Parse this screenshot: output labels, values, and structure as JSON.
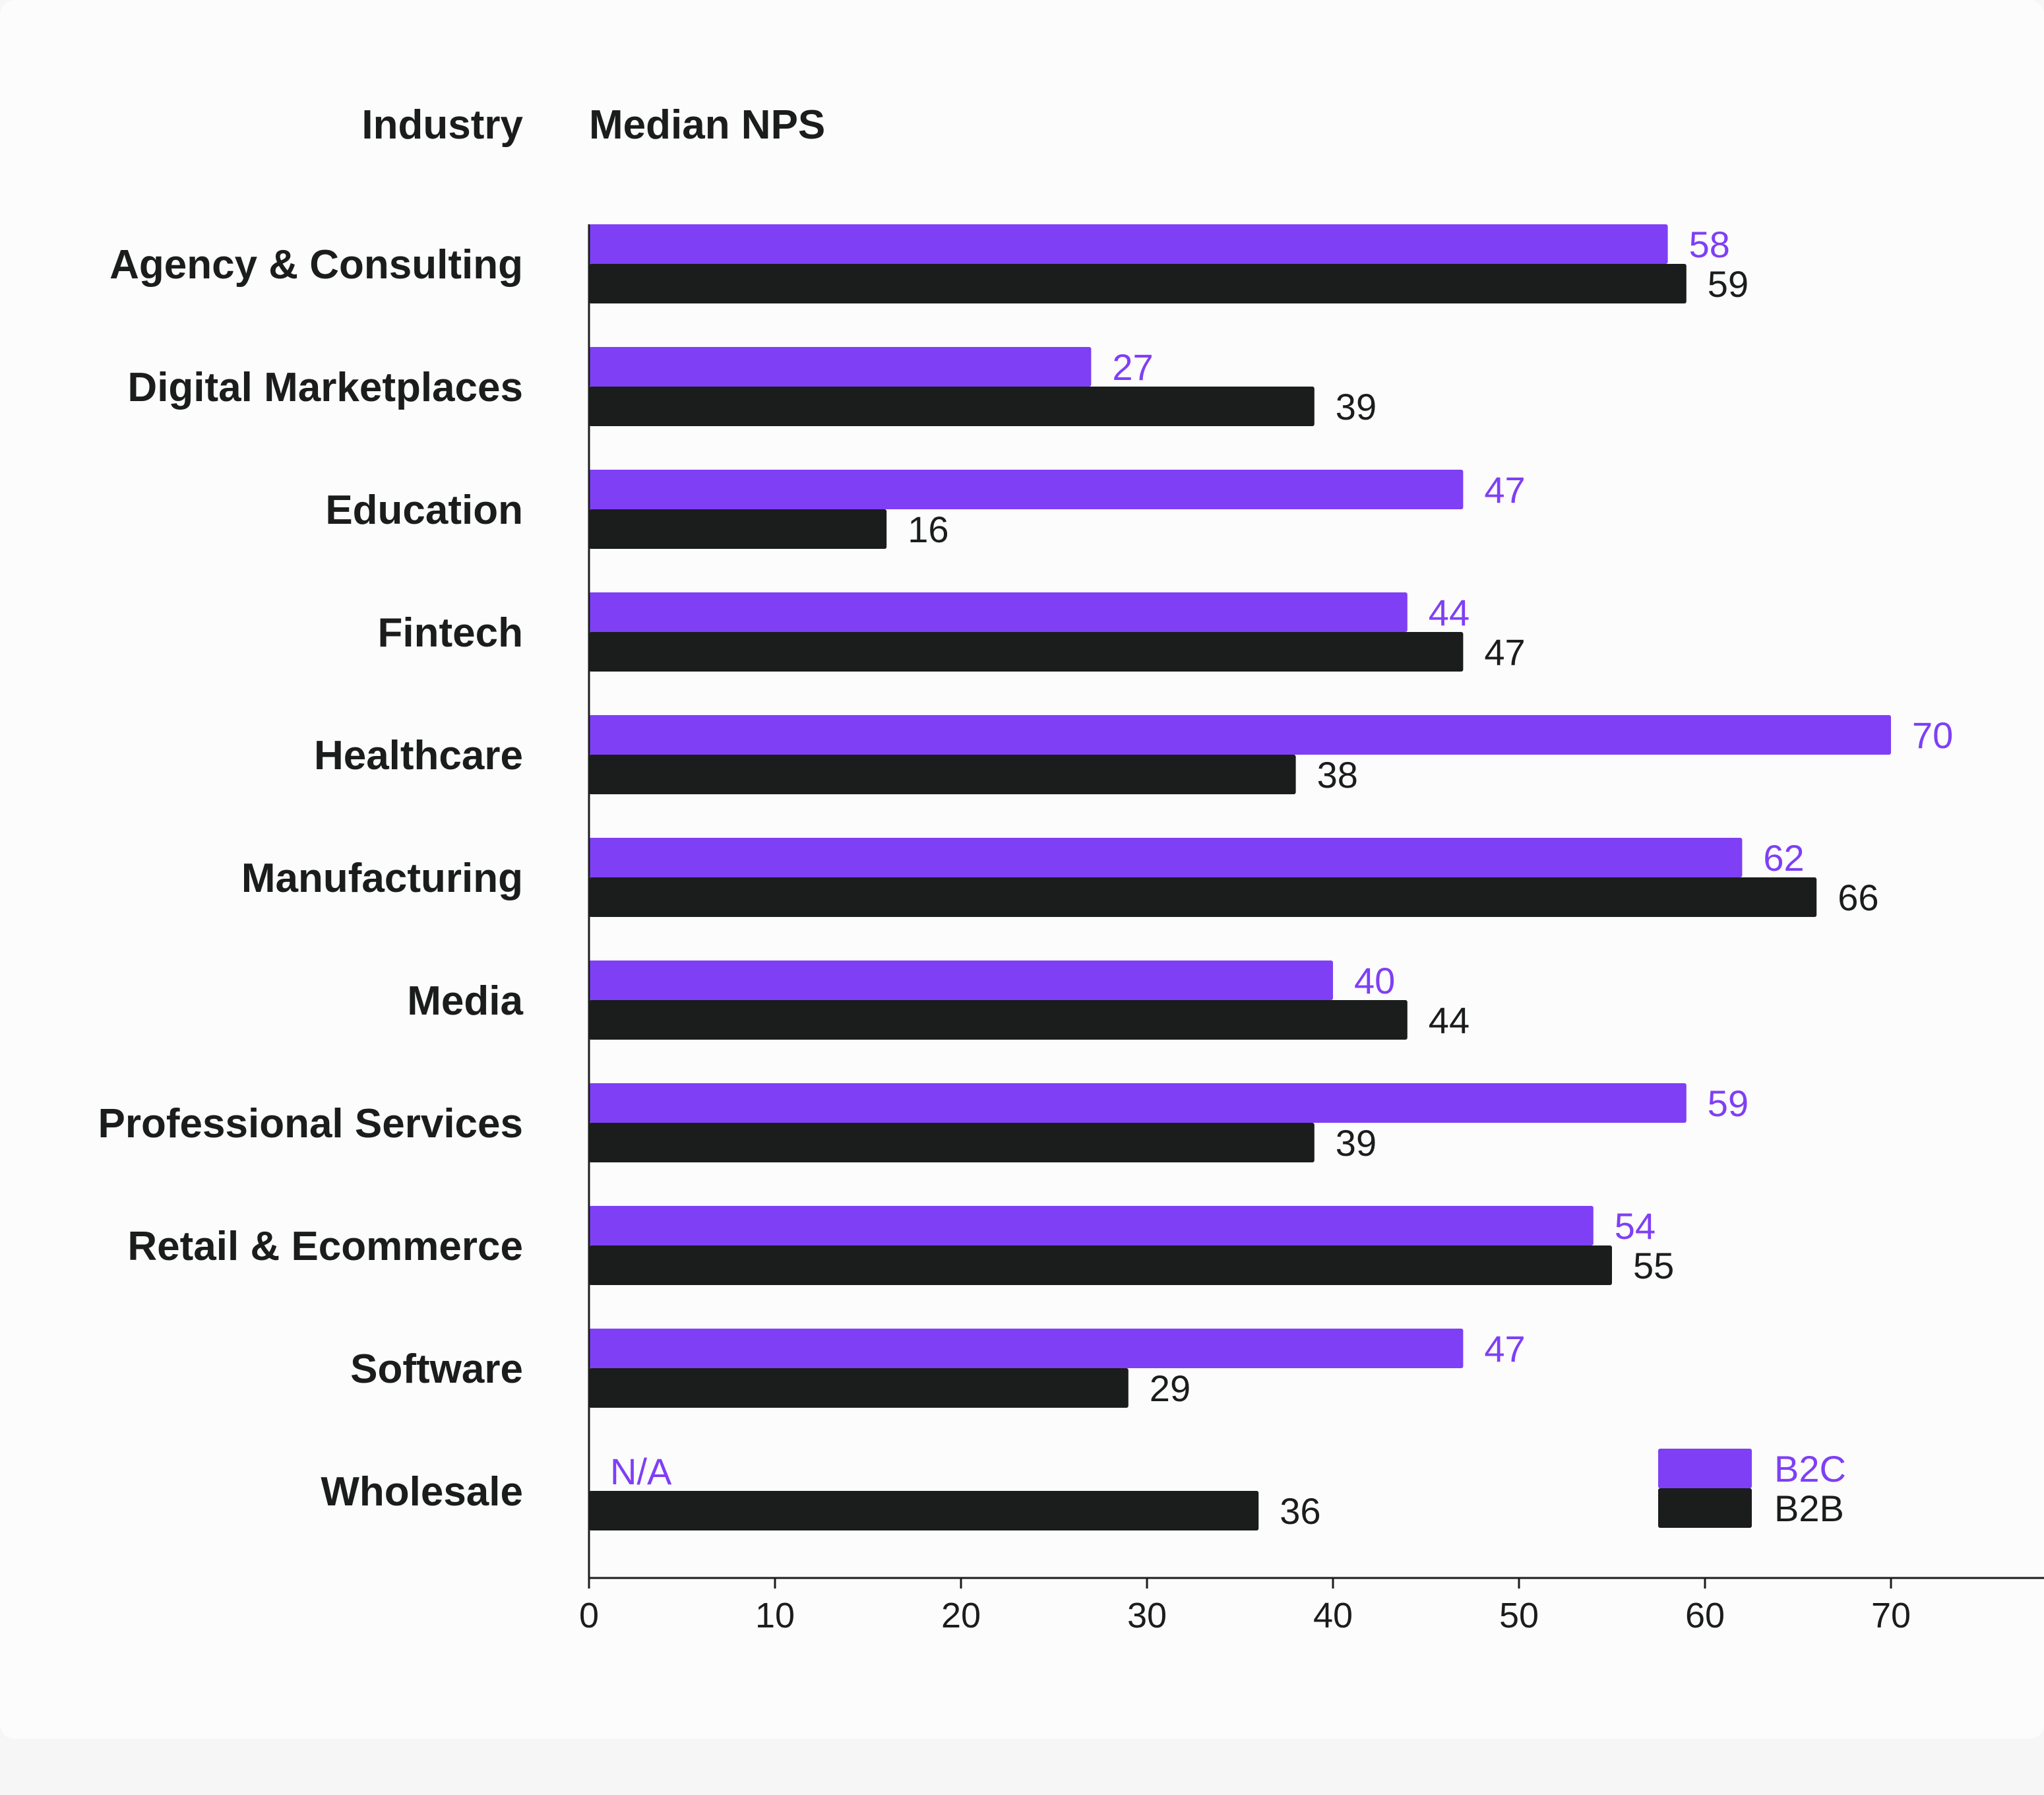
{
  "chart_data": {
    "type": "bar",
    "orientation": "horizontal",
    "category_header": "Industry",
    "value_header": "Median NPS",
    "categories": [
      "Agency & Consulting",
      "Digital Marketplaces",
      "Education",
      "Fintech",
      "Healthcare",
      "Manufacturing",
      "Media",
      "Professional Services",
      "Retail & Ecommerce",
      "Software",
      "Wholesale"
    ],
    "series": [
      {
        "name": "B2C",
        "color": "#7f3ff5",
        "values": [
          58,
          27,
          47,
          44,
          70,
          62,
          40,
          59,
          54,
          47,
          null
        ],
        "labels": [
          "58",
          "27",
          "47",
          "44",
          "70",
          "62",
          "40",
          "59",
          "54",
          "47",
          "N/A"
        ]
      },
      {
        "name": "B2B",
        "color": "#1b1d1d",
        "values": [
          59,
          39,
          16,
          47,
          38,
          66,
          44,
          39,
          55,
          29,
          36
        ],
        "labels": [
          "59",
          "39",
          "16",
          "47",
          "38",
          "66",
          "44",
          "39",
          "55",
          "29",
          "36"
        ]
      }
    ],
    "xlim": [
      0,
      77
    ],
    "xticks": [
      0,
      10,
      20,
      30,
      40,
      50,
      60,
      70
    ],
    "grid": false,
    "legend_position": "bottom-right"
  }
}
